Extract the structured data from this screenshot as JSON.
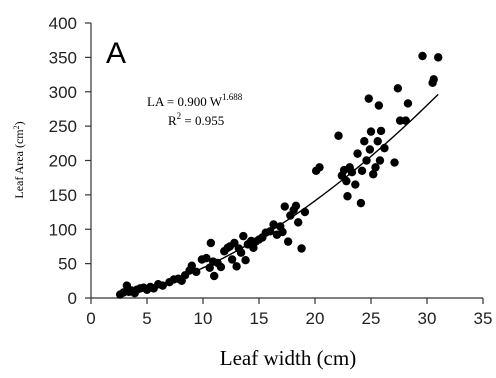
{
  "chart_data": {
    "type": "scatter",
    "panel_label": "A",
    "xlabel": "Leaf width (cm)",
    "ylabel_parts": {
      "text": "Leaf  Area (cm",
      "sup": "2",
      "close": ")"
    },
    "xlim": [
      0,
      35
    ],
    "ylim": [
      0,
      400
    ],
    "xticks": [
      0,
      5,
      10,
      15,
      20,
      25,
      30,
      35
    ],
    "yticks": [
      0,
      50,
      100,
      150,
      200,
      250,
      300,
      350,
      400
    ],
    "equation": {
      "lhs": "LA = 0.900 W",
      "exp": "1.688"
    },
    "r2": {
      "label": "R",
      "sup": "2",
      "rest": " = 0.955"
    },
    "fit": {
      "a": 0.9,
      "b": 1.688,
      "x_start": 2.5,
      "x_end": 31
    },
    "point_color": "#000000",
    "points": [
      [
        2.6,
        5
      ],
      [
        2.9,
        8
      ],
      [
        3.2,
        18
      ],
      [
        3.4,
        9
      ],
      [
        3.6,
        11
      ],
      [
        3.9,
        7
      ],
      [
        4.1,
        12
      ],
      [
        4.4,
        14
      ],
      [
        4.7,
        15
      ],
      [
        5.0,
        12
      ],
      [
        5.3,
        16
      ],
      [
        5.6,
        14
      ],
      [
        6.0,
        20
      ],
      [
        6.4,
        18
      ],
      [
        7.0,
        23
      ],
      [
        7.4,
        27
      ],
      [
        7.8,
        28
      ],
      [
        8.1,
        25
      ],
      [
        8.4,
        33
      ],
      [
        8.8,
        40
      ],
      [
        9.0,
        47
      ],
      [
        9.4,
        38
      ],
      [
        9.9,
        56
      ],
      [
        10.3,
        58
      ],
      [
        10.6,
        44
      ],
      [
        10.7,
        80
      ],
      [
        10.9,
        53
      ],
      [
        11.0,
        32
      ],
      [
        11.3,
        51
      ],
      [
        11.6,
        45
      ],
      [
        11.9,
        68
      ],
      [
        12.2,
        73
      ],
      [
        12.4,
        75
      ],
      [
        12.6,
        56
      ],
      [
        12.8,
        80
      ],
      [
        13.0,
        46
      ],
      [
        13.2,
        72
      ],
      [
        13.4,
        66
      ],
      [
        13.6,
        90
      ],
      [
        13.8,
        55
      ],
      [
        14.0,
        78
      ],
      [
        14.3,
        83
      ],
      [
        14.5,
        73
      ],
      [
        14.7,
        82
      ],
      [
        15.0,
        85
      ],
      [
        15.3,
        88
      ],
      [
        15.6,
        95
      ],
      [
        16.0,
        97
      ],
      [
        16.3,
        107
      ],
      [
        16.6,
        92
      ],
      [
        16.9,
        104
      ],
      [
        17.1,
        96
      ],
      [
        17.3,
        133
      ],
      [
        17.6,
        82
      ],
      [
        17.8,
        120
      ],
      [
        18.1,
        128
      ],
      [
        18.3,
        134
      ],
      [
        18.5,
        110
      ],
      [
        18.8,
        72
      ],
      [
        19.1,
        125
      ],
      [
        20.1,
        185
      ],
      [
        20.4,
        190
      ],
      [
        22.1,
        236
      ],
      [
        22.4,
        178
      ],
      [
        22.6,
        186
      ],
      [
        22.8,
        170
      ],
      [
        22.9,
        148
      ],
      [
        23.1,
        190
      ],
      [
        23.3,
        183
      ],
      [
        23.6,
        165
      ],
      [
        23.8,
        210
      ],
      [
        24.1,
        138
      ],
      [
        24.2,
        185
      ],
      [
        24.4,
        228
      ],
      [
        24.6,
        200
      ],
      [
        24.8,
        290
      ],
      [
        24.9,
        216
      ],
      [
        25.0,
        242
      ],
      [
        25.2,
        180
      ],
      [
        25.4,
        190
      ],
      [
        25.6,
        228
      ],
      [
        25.7,
        280
      ],
      [
        25.8,
        200
      ],
      [
        25.9,
        243
      ],
      [
        26.2,
        218
      ],
      [
        27.1,
        197
      ],
      [
        27.4,
        305
      ],
      [
        27.6,
        258
      ],
      [
        28.1,
        258
      ],
      [
        28.3,
        283
      ],
      [
        29.6,
        352
      ],
      [
        30.5,
        313
      ],
      [
        30.6,
        318
      ],
      [
        31.0,
        350
      ]
    ]
  }
}
